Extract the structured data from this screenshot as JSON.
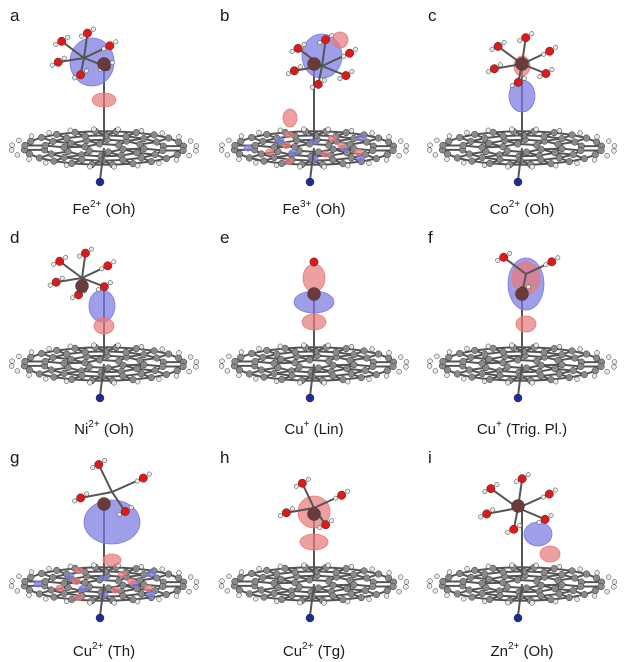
{
  "panels": [
    {
      "letter": "a",
      "ion": "Fe",
      "charge": "2+",
      "geometry": "(Oh)",
      "style": "fe2"
    },
    {
      "letter": "b",
      "ion": "Fe",
      "charge": "3+",
      "geometry": "(Oh)",
      "style": "fe3"
    },
    {
      "letter": "c",
      "ion": "Co",
      "charge": "2+",
      "geometry": "(Oh)",
      "style": "co2"
    },
    {
      "letter": "d",
      "ion": "Ni",
      "charge": "2+",
      "geometry": "(Oh)",
      "style": "ni2"
    },
    {
      "letter": "e",
      "ion": "Cu",
      "charge": "+",
      "geometry": "(Lin)",
      "style": "lin"
    },
    {
      "letter": "f",
      "ion": "Cu",
      "charge": "+",
      "geometry": "(Trig. Pl.)",
      "style": "trig"
    },
    {
      "letter": "g",
      "ion": "Cu",
      "charge": "2+",
      "geometry": "(Th)",
      "style": "th"
    },
    {
      "letter": "h",
      "ion": "Cu",
      "charge": "2+",
      "geometry": "(Tg)",
      "style": "tg"
    },
    {
      "letter": "i",
      "ion": "Zn",
      "charge": "2+",
      "geometry": "(Oh)",
      "style": "zn"
    }
  ],
  "colors": {
    "carbon": "#8a8a8a",
    "hydrogen": "#e8e8e8",
    "oxygen": "#e01818",
    "nitrogen": "#1a2a9a",
    "density_positive": "#e87a7a",
    "density_negative": "#7a7ae0"
  }
}
